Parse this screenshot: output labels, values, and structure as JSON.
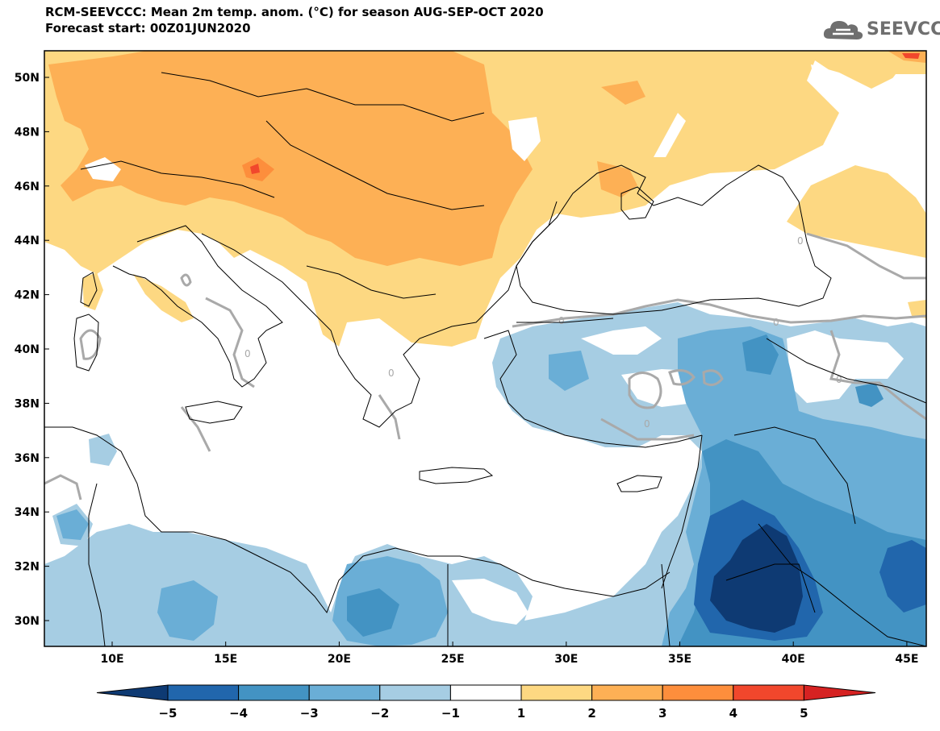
{
  "header": {
    "title_line1": "RCM-SEEVCCC: Mean 2m temp. anom. (°C) for season AUG-SEP-OCT 2020",
    "title_line2": "Forecast start: 00Z01JUN2020",
    "logo_text": "SEEVCCC"
  },
  "map": {
    "lat_labels": [
      "50N",
      "48N",
      "46N",
      "44N",
      "42N",
      "40N",
      "38N",
      "36N",
      "34N",
      "32N",
      "30N"
    ],
    "lon_labels": [
      "10E",
      "15E",
      "20E",
      "25E",
      "30E",
      "35E",
      "40E",
      "45E"
    ],
    "contour_label": "0"
  },
  "colorbar": {
    "labels": [
      "−5",
      "−4",
      "−3",
      "−2",
      "−1",
      "1",
      "2",
      "3",
      "4",
      "5"
    ],
    "colors": [
      "#0e3a73",
      "#2166ac",
      "#4393c3",
      "#6aaed6",
      "#a6cde3",
      "#ffffff",
      "#fdd882",
      "#fdb055",
      "#fd8e3c",
      "#f1472c",
      "#d62222"
    ]
  },
  "colors": {
    "warm1": "#fdd882",
    "warm2": "#fdb055",
    "warm3": "#fd8e3c",
    "warm4": "#f1472c",
    "cold1": "#a6cde3",
    "cold2": "#6aaed6",
    "cold3": "#4393c3",
    "cold4": "#2166ac",
    "cold5": "#0e3a73",
    "contour": "#a9a9a9"
  }
}
